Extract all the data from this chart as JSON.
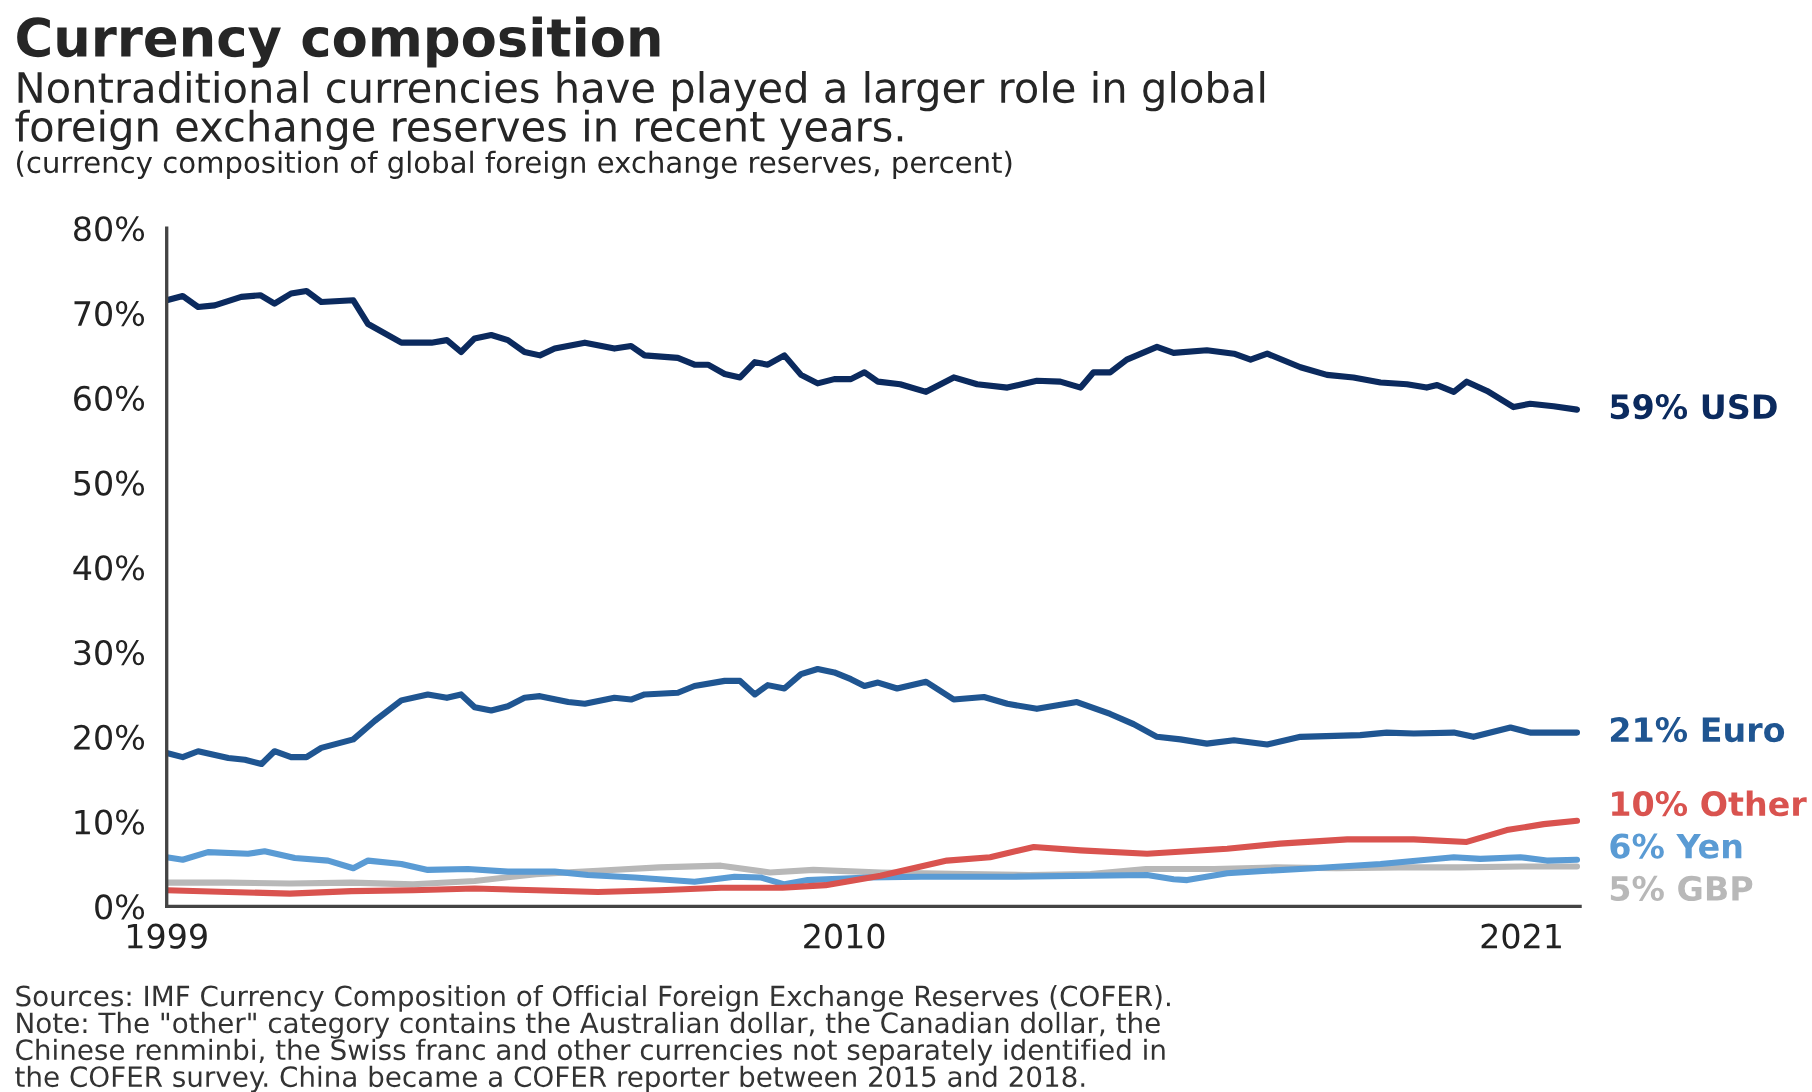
{
  "chart_data": {
    "type": "line",
    "title": "Currency composition",
    "subtitle": "Nontraditional currencies have played a larger role in global\nforeign exchange reserves in recent years.",
    "ylabel": "(currency composition of global foreign exchange reserves, percent)",
    "annotations": [
      "Sources: IMF Currency Composition of Official Foreign Exchange Reserves (COFER).\nNote: The \"other\" category contains the Australian dollar, the Canadian dollar, the\nChinese renminbi, the Swiss franc and other currencies not separately identified in\nthe COFER survey. China became a COFER reporter between 2015 and 2018."
    ],
    "xlim": [
      1999,
      2021.95
    ],
    "xticks": [
      1999,
      2010,
      2021
    ],
    "ylim": [
      0,
      80
    ],
    "yticks": [
      {
        "value": 0,
        "label": "0%"
      },
      {
        "value": 10,
        "label": "10%"
      },
      {
        "value": 20,
        "label": "20%"
      },
      {
        "value": 30,
        "label": "30%"
      },
      {
        "value": 40,
        "label": "40%"
      },
      {
        "value": 50,
        "label": "50%"
      },
      {
        "value": 60,
        "label": "60%"
      },
      {
        "value": 70,
        "label": "70%"
      },
      {
        "value": 80,
        "label": "80%"
      }
    ],
    "grid": false,
    "legend": false,
    "marker": "none",
    "line_style": "solid",
    "series": [
      {
        "name": "59% USD",
        "color": "#0b2a5e",
        "x": [
          1999.0,
          1999.26,
          1999.51,
          1999.78,
          2000.21,
          2000.52,
          2000.75,
          2001.02,
          2001.27,
          2001.51,
          2002.03,
          2002.27,
          2002.81,
          2003.3,
          2003.55,
          2003.78,
          2004.0,
          2004.27,
          2004.54,
          2004.81,
          2005.06,
          2005.3,
          2005.79,
          2006.27,
          2006.54,
          2006.76,
          2007.3,
          2007.57,
          2007.79,
          2008.06,
          2008.31,
          2008.55,
          2008.76,
          2009.03,
          2009.3,
          2009.57,
          2009.84,
          2010.11,
          2010.33,
          2010.55,
          2010.91,
          2011.33,
          2011.78,
          2012.16,
          2012.65,
          2013.13,
          2013.51,
          2013.84,
          2014.05,
          2014.32,
          2014.59,
          2015.08,
          2015.35,
          2015.89,
          2016.33,
          2016.6,
          2016.87,
          2017.41,
          2017.84,
          2018.27,
          2018.71,
          2019.14,
          2019.46,
          2019.63,
          2019.9,
          2020.11,
          2020.44,
          2020.87,
          2021.14,
          2021.52,
          2021.9
        ],
        "values": [
          71.5,
          72.0,
          70.7,
          70.9,
          71.9,
          72.1,
          71.1,
          72.3,
          72.6,
          71.3,
          71.5,
          68.7,
          66.5,
          66.5,
          66.8,
          65.4,
          67.0,
          67.4,
          66.8,
          65.4,
          65.0,
          65.8,
          66.5,
          65.8,
          66.1,
          65.0,
          64.7,
          63.9,
          63.9,
          62.8,
          62.4,
          64.2,
          63.9,
          65.0,
          62.7,
          61.7,
          62.2,
          62.2,
          63.0,
          61.9,
          61.6,
          60.7,
          62.4,
          61.6,
          61.2,
          62.0,
          61.9,
          61.2,
          63.0,
          63.0,
          64.5,
          66.0,
          65.3,
          65.6,
          65.2,
          64.5,
          65.2,
          63.6,
          62.7,
          62.4,
          61.8,
          61.6,
          61.2,
          61.5,
          60.7,
          61.9,
          60.8,
          58.9,
          59.3,
          59.0,
          58.6
        ]
      },
      {
        "name": "21% Euro",
        "color": "#1f5591",
        "x": [
          1999.0,
          1999.26,
          1999.51,
          2000.0,
          2000.27,
          2000.54,
          2000.75,
          2001.02,
          2001.27,
          2001.51,
          2002.03,
          2002.38,
          2002.81,
          2003.24,
          2003.55,
          2003.78,
          2004.0,
          2004.27,
          2004.54,
          2004.81,
          2005.06,
          2005.52,
          2005.79,
          2006.27,
          2006.54,
          2006.76,
          2007.3,
          2007.57,
          2008.06,
          2008.31,
          2008.55,
          2008.76,
          2009.03,
          2009.3,
          2009.57,
          2009.84,
          2010.11,
          2010.33,
          2010.55,
          2010.86,
          2011.33,
          2011.78,
          2012.27,
          2012.65,
          2013.13,
          2013.78,
          2014.32,
          2014.7,
          2015.08,
          2015.46,
          2015.89,
          2016.33,
          2016.87,
          2017.41,
          2018.38,
          2018.81,
          2019.25,
          2019.9,
          2020.22,
          2020.82,
          2021.14,
          2021.9
        ],
        "values": [
          18.1,
          17.6,
          18.3,
          17.5,
          17.3,
          16.8,
          18.3,
          17.6,
          17.6,
          18.7,
          19.7,
          21.9,
          24.3,
          25.0,
          24.6,
          25.0,
          23.5,
          23.1,
          23.6,
          24.6,
          24.8,
          24.1,
          23.9,
          24.6,
          24.4,
          25.0,
          25.2,
          26.0,
          26.6,
          26.6,
          25.0,
          26.1,
          25.7,
          27.4,
          28.0,
          27.6,
          26.8,
          26.0,
          26.4,
          25.7,
          26.5,
          24.4,
          24.7,
          23.9,
          23.3,
          24.1,
          22.7,
          21.5,
          20.0,
          19.7,
          19.2,
          19.6,
          19.1,
          20.0,
          20.2,
          20.5,
          20.4,
          20.5,
          20.0,
          21.1,
          20.5,
          20.5
        ]
      },
      {
        "name": "10% Other",
        "color": "#d9534f",
        "x": [
          1999,
          2000,
          2001,
          2002,
          2003,
          2004,
          2005,
          2006,
          2007,
          2008,
          2009,
          2009.7,
          2010.1,
          2010.59,
          2011.67,
          2012.37,
          2013.08,
          2013.84,
          2014.92,
          2016.22,
          2017.08,
          2018.17,
          2019.25,
          2020.11,
          2020.76,
          2021.36,
          2021.9
        ],
        "values": [
          1.9,
          1.7,
          1.5,
          1.8,
          1.9,
          2.1,
          1.9,
          1.7,
          1.9,
          2.2,
          2.2,
          2.5,
          3.0,
          3.6,
          5.4,
          5.8,
          7.0,
          6.6,
          6.2,
          6.8,
          7.4,
          7.9,
          7.9,
          7.6,
          9.0,
          9.7,
          10.1
        ]
      },
      {
        "name": "6% Yen",
        "color": "#5a9bd4",
        "x": [
          1999.0,
          1999.26,
          1999.67,
          2000.32,
          2000.59,
          2001.08,
          2001.62,
          2002.03,
          2002.27,
          2002.81,
          2003.24,
          2003.89,
          2004.54,
          2005.3,
          2005.84,
          2006.6,
          2007.57,
          2008.22,
          2008.65,
          2009.03,
          2009.41,
          2010.39,
          2011.25,
          2012.75,
          2014.92,
          2015.35,
          2015.57,
          2016.22,
          2016.87,
          2017.62,
          2018.71,
          2019.9,
          2020.33,
          2020.98,
          2021.41,
          2021.9
        ],
        "values": [
          5.8,
          5.5,
          6.4,
          6.2,
          6.5,
          5.7,
          5.4,
          4.5,
          5.4,
          5.0,
          4.3,
          4.4,
          4.1,
          4.1,
          3.7,
          3.4,
          2.9,
          3.5,
          3.4,
          2.6,
          3.1,
          3.4,
          3.5,
          3.5,
          3.7,
          3.2,
          3.1,
          3.9,
          4.2,
          4.5,
          5.0,
          5.8,
          5.6,
          5.8,
          5.4,
          5.5
        ]
      },
      {
        "name": "5% GBP",
        "color": "#b8b8b8",
        "x": [
          1999,
          2000,
          2001,
          2002,
          2003,
          2004,
          2005,
          2006,
          2007,
          2008,
          2008.8,
          2009.5,
          2010.6,
          2012,
          2013,
          2014,
          2014.9,
          2016,
          2017,
          2018,
          2019,
          2020,
          2021,
          2021.9
        ],
        "values": [
          2.8,
          2.8,
          2.7,
          2.8,
          2.6,
          3.0,
          3.8,
          4.2,
          4.6,
          4.8,
          4.0,
          4.3,
          4.0,
          3.8,
          3.7,
          3.8,
          4.4,
          4.4,
          4.6,
          4.5,
          4.6,
          4.6,
          4.7,
          4.7
        ]
      }
    ]
  }
}
